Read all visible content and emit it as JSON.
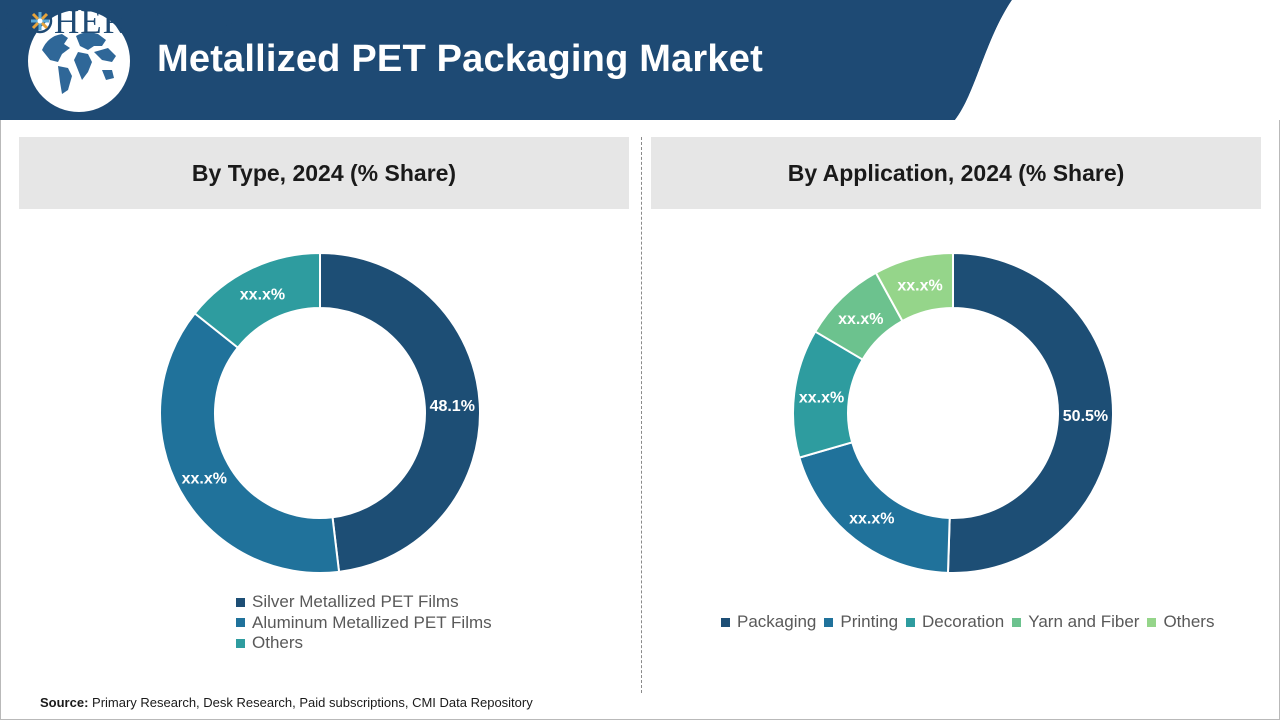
{
  "header": {
    "title": "Metallized PET Packaging Market",
    "logo_prefix": "C",
    "logo_middle": "HERENT",
    "logo_suffix": "MI"
  },
  "colors": {
    "header_blue": "#1e4a74",
    "navy": "#1d4e75",
    "mid_blue": "#20729b",
    "teal": "#2e9c9f",
    "green": "#6cc28e",
    "light_green": "#95d58a"
  },
  "chart_data": [
    {
      "type": "pie",
      "title": "By Type, 2024 (% Share)",
      "categories": [
        "Silver Metallized PET Films",
        "Aluminum Metallized PET Films",
        "Others"
      ],
      "values": [
        48.1,
        37.6,
        14.3
      ],
      "labels": [
        "48.1%",
        "xx.x%",
        "xx.x%"
      ],
      "colors": [
        "#1d4e75",
        "#20729b",
        "#2e9c9f"
      ],
      "donut": true,
      "legend_position": "bottom-vertical"
    },
    {
      "type": "pie",
      "title": "By Application, 2024 (% Share)",
      "categories": [
        "Packaging",
        "Printing",
        "Decoration",
        "Yarn and Fiber",
        "Others"
      ],
      "values": [
        50.5,
        20.0,
        13.0,
        8.5,
        8.0
      ],
      "labels": [
        "50.5%",
        "xx.x%",
        "xx.x%",
        "xx.x%",
        "xx.x%"
      ],
      "colors": [
        "#1d4e75",
        "#20729b",
        "#2e9c9f",
        "#6cc28e",
        "#95d58a"
      ],
      "donut": true,
      "legend_position": "bottom-horizontal"
    }
  ],
  "footer": {
    "source_label": "Source:",
    "source_text": " Primary Research, Desk Research, Paid subscriptions, CMI Data Repository"
  }
}
